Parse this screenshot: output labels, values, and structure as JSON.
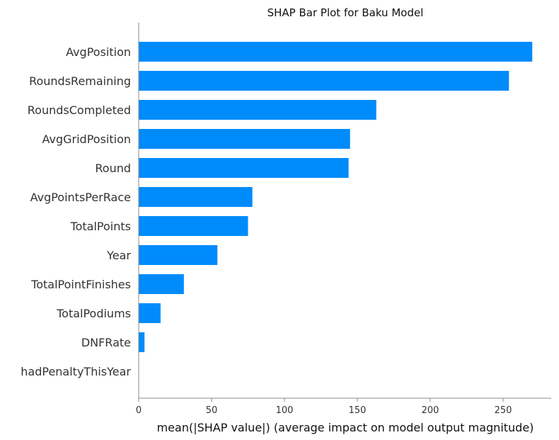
{
  "chart_data": {
    "type": "bar",
    "orientation": "horizontal",
    "title": "SHAP Bar Plot for Baku Model",
    "xlabel": "mean(|SHAP value|) (average impact on model output magnitude)",
    "ylabel": "",
    "categories": [
      "AvgPosition",
      "RoundsRemaining",
      "RoundsCompleted",
      "AvgGridPosition",
      "Round",
      "AvgPointsPerRace",
      "TotalPoints",
      "Year",
      "TotalPointFinishes",
      "TotalPodiums",
      "DNFRate",
      "hadPenaltyThisYear"
    ],
    "values": [
      270,
      254,
      163,
      145,
      144,
      78,
      75,
      54,
      31,
      15,
      4,
      0
    ],
    "xlim": [
      0,
      283
    ],
    "xticks": [
      0,
      50,
      100,
      150,
      200,
      250
    ],
    "grid": false,
    "bar_color": "#008bfb"
  }
}
